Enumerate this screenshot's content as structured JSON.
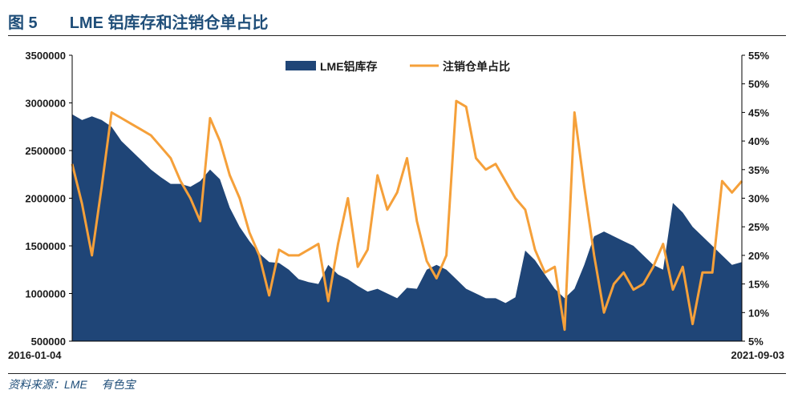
{
  "figure": {
    "number": "图 5",
    "title": "LME 铝库存和注销仓单占比",
    "source": "资料来源：LME　 有色宝"
  },
  "colors": {
    "inventory_fill": "#1f4577",
    "ratio_line": "#f5a03a",
    "title": "#1f4e79"
  },
  "chart_data": {
    "type": "area",
    "x_start_label": "2016-01-04",
    "x_end_label": "2021-09-03",
    "x_range": [
      "2016-01-04",
      "2021-09-03"
    ],
    "left_axis": {
      "ylim": [
        500000,
        3500000
      ],
      "ticks": [
        "500000",
        "1000000",
        "1500000",
        "2000000",
        "2500000",
        "3000000",
        "3500000"
      ]
    },
    "right_axis": {
      "ylim": [
        5,
        55
      ],
      "unit": "%",
      "ticks": [
        "5%",
        "10%",
        "15%",
        "20%",
        "25%",
        "30%",
        "35%",
        "40%",
        "45%",
        "50%",
        "55%"
      ]
    },
    "legend": {
      "placement": "top-center"
    },
    "series": [
      {
        "name": "LME铝库存",
        "type": "area",
        "axis": "left",
        "x": [
          "2016-01",
          "2016-02",
          "2016-03",
          "2016-04",
          "2016-05",
          "2016-06",
          "2016-07",
          "2016-08",
          "2016-09",
          "2016-10",
          "2016-11",
          "2016-12",
          "2017-01",
          "2017-02",
          "2017-03",
          "2017-04",
          "2017-05",
          "2017-06",
          "2017-07",
          "2017-08",
          "2017-09",
          "2017-10",
          "2017-11",
          "2017-12",
          "2018-01",
          "2018-02",
          "2018-03",
          "2018-04",
          "2018-05",
          "2018-06",
          "2018-07",
          "2018-08",
          "2018-09",
          "2018-10",
          "2018-11",
          "2018-12",
          "2019-01",
          "2019-02",
          "2019-03",
          "2019-04",
          "2019-05",
          "2019-06",
          "2019-07",
          "2019-08",
          "2019-09",
          "2019-10",
          "2019-11",
          "2019-12",
          "2020-01",
          "2020-02",
          "2020-03",
          "2020-04",
          "2020-05",
          "2020-06",
          "2020-07",
          "2020-08",
          "2020-09",
          "2020-10",
          "2020-11",
          "2020-12",
          "2021-01",
          "2021-02",
          "2021-03",
          "2021-04",
          "2021-05",
          "2021-06",
          "2021-07",
          "2021-08",
          "2021-09"
        ],
        "values": [
          2880000,
          2820000,
          2860000,
          2820000,
          2750000,
          2600000,
          2500000,
          2400000,
          2300000,
          2220000,
          2150000,
          2150000,
          2120000,
          2180000,
          2300000,
          2200000,
          1900000,
          1700000,
          1550000,
          1420000,
          1330000,
          1320000,
          1250000,
          1150000,
          1120000,
          1100000,
          1300000,
          1200000,
          1150000,
          1080000,
          1020000,
          1050000,
          1000000,
          950000,
          1060000,
          1050000,
          1250000,
          1300000,
          1250000,
          1150000,
          1050000,
          1000000,
          950000,
          950000,
          900000,
          960000,
          1450000,
          1350000,
          1200000,
          1050000,
          950000,
          1050000,
          1300000,
          1600000,
          1650000,
          1600000,
          1550000,
          1500000,
          1400000,
          1300000,
          1250000,
          1950000,
          1850000,
          1700000,
          1600000,
          1500000,
          1400000,
          1300000,
          1330000
        ]
      },
      {
        "name": "注销仓单占比",
        "type": "line",
        "axis": "right",
        "x": [
          "2016-01",
          "2016-02",
          "2016-03",
          "2016-04",
          "2016-05",
          "2016-06",
          "2016-07",
          "2016-08",
          "2016-09",
          "2016-10",
          "2016-11",
          "2016-12",
          "2017-01",
          "2017-02",
          "2017-03",
          "2017-04",
          "2017-05",
          "2017-06",
          "2017-07",
          "2017-08",
          "2017-09",
          "2017-10",
          "2017-11",
          "2017-12",
          "2018-01",
          "2018-02",
          "2018-03",
          "2018-04",
          "2018-05",
          "2018-06",
          "2018-07",
          "2018-08",
          "2018-09",
          "2018-10",
          "2018-11",
          "2018-12",
          "2019-01",
          "2019-02",
          "2019-03",
          "2019-04",
          "2019-05",
          "2019-06",
          "2019-07",
          "2019-08",
          "2019-09",
          "2019-10",
          "2019-11",
          "2019-12",
          "2020-01",
          "2020-02",
          "2020-03",
          "2020-04",
          "2020-05",
          "2020-06",
          "2020-07",
          "2020-08",
          "2020-09",
          "2020-10",
          "2020-11",
          "2020-12",
          "2021-01",
          "2021-02",
          "2021-03",
          "2021-04",
          "2021-05",
          "2021-06",
          "2021-07",
          "2021-08",
          "2021-09"
        ],
        "values": [
          36,
          29,
          20,
          32,
          45,
          44,
          43,
          42,
          41,
          39,
          37,
          33,
          30,
          26,
          44,
          40,
          34,
          30,
          24,
          20,
          13,
          21,
          20,
          20,
          21,
          22,
          12,
          22,
          30,
          18,
          21,
          34,
          28,
          31,
          37,
          26,
          19,
          16,
          20,
          47,
          46,
          37,
          35,
          36,
          33,
          30,
          28,
          21,
          17,
          18,
          7,
          45,
          32,
          20,
          10,
          15,
          17,
          14,
          15,
          18,
          22,
          14,
          18,
          8,
          17,
          17,
          33,
          31,
          33
        ]
      }
    ]
  }
}
